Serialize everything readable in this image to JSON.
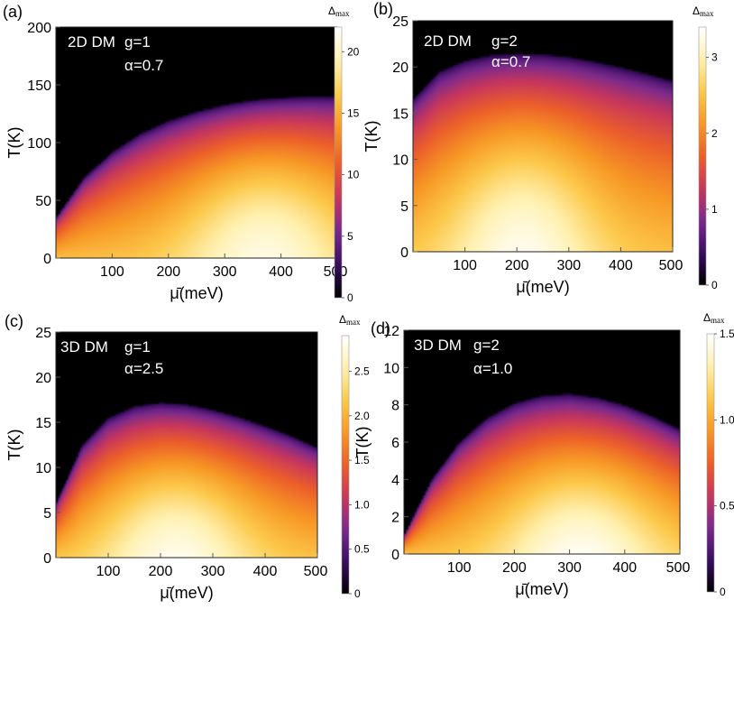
{
  "figure": {
    "panels": [
      {
        "label": "(a)",
        "annotations": [
          "2D DM",
          "g=1",
          "α=0.7"
        ],
        "colorbar_label": "Δmax",
        "colorbar_ticks": [
          "0",
          "5",
          "10",
          "15",
          "20"
        ]
      },
      {
        "label": "(b)",
        "annotations": [
          "2D DM",
          "g=2",
          "α=0.7"
        ],
        "colorbar_label": "Δmax",
        "colorbar_ticks": [
          "0",
          "1",
          "2",
          "3"
        ]
      },
      {
        "label": "(c)",
        "annotations": [
          "3D DM",
          "g=1",
          "α=2.5"
        ],
        "colorbar_label": "Δmax",
        "colorbar_ticks": [
          "0",
          "0.5",
          "1.0",
          "1.5",
          "2.0",
          "2.5"
        ]
      },
      {
        "label": "(d)",
        "annotations": [
          "3D DM",
          "g=2",
          "α=1.0"
        ],
        "colorbar_label": "Δmax",
        "colorbar_ticks": [
          "0",
          "0.5",
          "1.0",
          "1.5"
        ]
      }
    ]
  },
  "chart_data": [
    {
      "type": "heatmap",
      "title": "",
      "xlabel": "μ̄(meV)",
      "ylabel": "T(K)",
      "xlim": [
        0,
        500
      ],
      "ylim": [
        0,
        200
      ],
      "xticks": [
        100,
        200,
        300,
        400,
        500
      ],
      "yticks": [
        0,
        50,
        100,
        150,
        200
      ],
      "colorbar": {
        "label": "Δmax",
        "range": [
          0,
          22
        ],
        "ticks": [
          0,
          5,
          10,
          15,
          20
        ]
      },
      "colormap": [
        "#000000",
        "#3a0d63",
        "#7b2a8c",
        "#c8375c",
        "#ec5f2a",
        "#f79825",
        "#fcc94c",
        "#fff1b0",
        "#ffffff"
      ],
      "critical_temperature": {
        "mu": [
          0,
          50,
          100,
          150,
          200,
          250,
          300,
          350,
          400,
          450,
          500
        ],
        "T": [
          35,
          70,
          92,
          108,
          119,
          127,
          133,
          137,
          139,
          140,
          140
        ]
      },
      "max_value_location": {
        "mu": 370,
        "T": 40
      }
    },
    {
      "type": "heatmap",
      "title": "",
      "xlabel": "μ̄(meV)",
      "ylabel": "T(K)",
      "xlim": [
        0,
        500
      ],
      "ylim": [
        0,
        25
      ],
      "xticks": [
        100,
        200,
        300,
        400,
        500
      ],
      "yticks": [
        0,
        5,
        10,
        15,
        20,
        25
      ],
      "colorbar": {
        "label": "Δmax",
        "range": [
          0,
          3.4
        ],
        "ticks": [
          0,
          1,
          2,
          3
        ]
      },
      "colormap": [
        "#000000",
        "#3a0d63",
        "#7b2a8c",
        "#c8375c",
        "#ec5f2a",
        "#f79825",
        "#fcc94c",
        "#fff1b0",
        "#ffffff"
      ],
      "critical_temperature": {
        "mu": [
          0,
          50,
          100,
          150,
          200,
          250,
          300,
          350,
          400,
          450,
          500
        ],
        "T": [
          16.5,
          19.5,
          20.7,
          21.3,
          21.5,
          21.4,
          21.1,
          20.6,
          20.0,
          19.3,
          18.5
        ]
      },
      "max_value_location": {
        "mu": 210,
        "T": 5
      }
    },
    {
      "type": "heatmap",
      "title": "",
      "xlabel": "μ̄(meV)",
      "ylabel": "T(K)",
      "xlim": [
        0,
        500
      ],
      "ylim": [
        0,
        25
      ],
      "xticks": [
        100,
        200,
        300,
        400,
        500
      ],
      "yticks": [
        0,
        5,
        10,
        15,
        20,
        25
      ],
      "colorbar": {
        "label": "Δmax",
        "range": [
          0,
          2.9
        ],
        "ticks": [
          0,
          0.5,
          1.0,
          1.5,
          2.0,
          2.5
        ]
      },
      "colormap": [
        "#000000",
        "#3a0d63",
        "#7b2a8c",
        "#c8375c",
        "#ec5f2a",
        "#f79825",
        "#fcc94c",
        "#fff1b0",
        "#ffffff"
      ],
      "critical_temperature": {
        "mu": [
          0,
          50,
          100,
          150,
          200,
          250,
          300,
          350,
          400,
          450,
          500
        ],
        "T": [
          6,
          12.5,
          15.5,
          16.8,
          17.2,
          17.0,
          16.4,
          15.6,
          14.6,
          13.5,
          12.2
        ]
      },
      "max_value_location": {
        "mu": 230,
        "T": 4
      }
    },
    {
      "type": "heatmap",
      "title": "",
      "xlabel": "μ̄(meV)",
      "ylabel": "T(K)",
      "xlim": [
        0,
        500
      ],
      "ylim": [
        0,
        12
      ],
      "xticks": [
        100,
        200,
        300,
        400,
        500
      ],
      "yticks": [
        0,
        2,
        4,
        6,
        8,
        10,
        12
      ],
      "colorbar": {
        "label": "Δmax",
        "range": [
          0,
          1.5
        ],
        "ticks": [
          0,
          0.5,
          1.0,
          1.5
        ]
      },
      "colormap": [
        "#000000",
        "#3a0d63",
        "#7b2a8c",
        "#c8375c",
        "#ec5f2a",
        "#f79825",
        "#fcc94c",
        "#fff1b0",
        "#ffffff"
      ],
      "critical_temperature": {
        "mu": [
          0,
          50,
          100,
          150,
          200,
          250,
          300,
          350,
          400,
          450,
          500
        ],
        "T": [
          1.0,
          4.0,
          6.0,
          7.3,
          8.1,
          8.5,
          8.6,
          8.4,
          8.0,
          7.4,
          6.7
        ]
      },
      "max_value_location": {
        "mu": 320,
        "T": 1.5
      }
    }
  ]
}
